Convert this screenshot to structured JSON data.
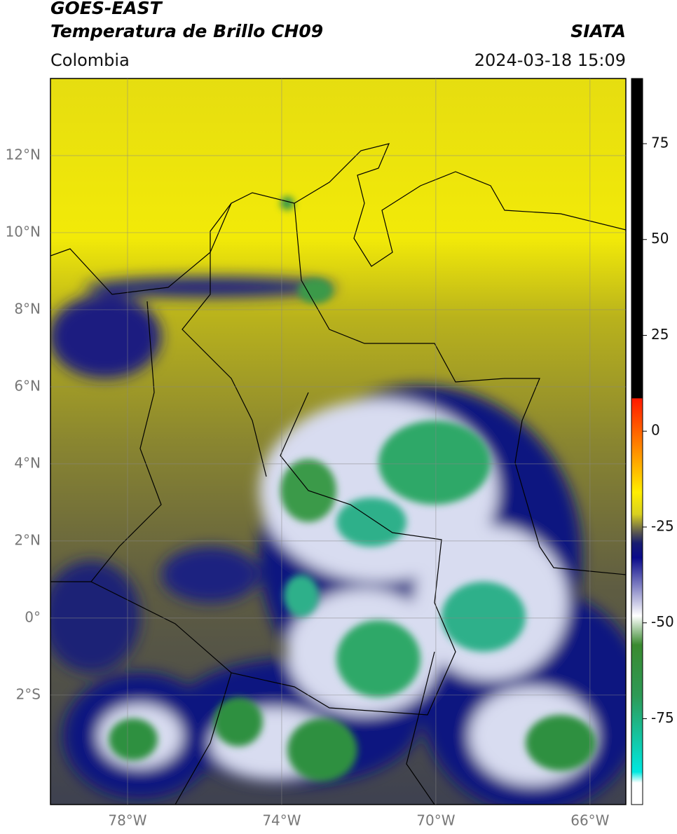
{
  "header": {
    "title": "GOES-EAST",
    "subtitle": "Temperatura de Brillo CH09",
    "source": "SIATA",
    "region": "Colombia",
    "datetime": "2024-03-18 15:09"
  },
  "map": {
    "lonlim": [
      -80,
      -65.07
    ],
    "latlim": [
      -4.84,
      14
    ],
    "lonticks": [
      {
        "value": -78,
        "label": "78°W"
      },
      {
        "value": -74,
        "label": "74°W"
      },
      {
        "value": -70,
        "label": "70°W"
      },
      {
        "value": -66,
        "label": "66°W"
      }
    ],
    "latticks": [
      {
        "value": 12,
        "label": "12°N"
      },
      {
        "value": 10,
        "label": "10°N"
      },
      {
        "value": 8,
        "label": "8°N"
      },
      {
        "value": 6,
        "label": "6°N"
      },
      {
        "value": 4,
        "label": "4°N"
      },
      {
        "value": 2,
        "label": "2°N"
      },
      {
        "value": 0,
        "label": "0°"
      },
      {
        "value": -2,
        "label": "2°S"
      }
    ]
  },
  "colorbar": {
    "lim": [
      -97.4,
      92
    ],
    "ticks": [
      75,
      50,
      25,
      0,
      -25,
      -50,
      -75
    ]
  }
}
